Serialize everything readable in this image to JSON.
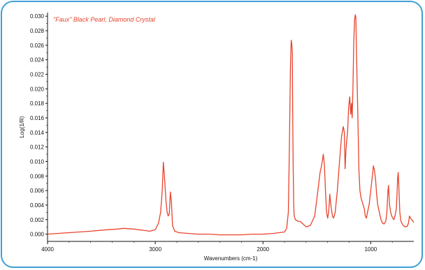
{
  "chart_data": {
    "type": "line",
    "title": "",
    "annotation": "\"Faux\" Black Pearl, Diamond Crystal",
    "xlabel": "Wavenumbers (cm-1)",
    "ylabel": "Log(1/R)",
    "xlim": [
      4000,
      600
    ],
    "ylim": [
      -0.001,
      0.0305
    ],
    "x_ticks": [
      "4000",
      "3000",
      "2000",
      "1000"
    ],
    "x_tick_values": [
      4000,
      3000,
      2000,
      1000
    ],
    "y_ticks": [
      "0.000",
      "0.002",
      "0.004",
      "0.006",
      "0.008",
      "0.010",
      "0.012",
      "0.014",
      "0.016",
      "0.018",
      "0.020",
      "0.022",
      "0.024",
      "0.026",
      "0.028",
      "0.030"
    ],
    "y_tick_values": [
      0,
      0.002,
      0.004,
      0.006,
      0.008,
      0.01,
      0.012,
      0.014,
      0.016,
      0.018,
      0.02,
      0.022,
      0.024,
      0.026,
      0.028,
      0.03
    ],
    "grid": false,
    "series": [
      {
        "color": "#e8432c",
        "x": [
          4000,
          3800,
          3600,
          3450,
          3350,
          3300,
          3200,
          3100,
          3050,
          3000,
          2970,
          2950,
          2935,
          2925,
          2915,
          2900,
          2890,
          2880,
          2870,
          2860,
          2850,
          2840,
          2820,
          2780,
          2700,
          2600,
          2500,
          2400,
          2300,
          2200,
          2100,
          2000,
          1900,
          1850,
          1800,
          1780,
          1765,
          1755,
          1745,
          1738,
          1733,
          1728,
          1725,
          1720,
          1715,
          1710,
          1700,
          1680,
          1650,
          1600,
          1560,
          1520,
          1490,
          1470,
          1455,
          1445,
          1440,
          1430,
          1420,
          1410,
          1400,
          1390,
          1380,
          1370,
          1355,
          1345,
          1330,
          1310,
          1290,
          1270,
          1255,
          1245,
          1238,
          1230,
          1222,
          1215,
          1205,
          1195,
          1185,
          1178,
          1172,
          1165,
          1158,
          1150,
          1143,
          1138,
          1132,
          1125,
          1118,
          1110,
          1100,
          1090,
          1080,
          1070,
          1060,
          1050,
          1040,
          1030,
          1015,
          1000,
          985,
          975,
          965,
          955,
          945,
          935,
          920,
          905,
          890,
          875,
          860,
          850,
          845,
          840,
          835,
          825,
          815,
          805,
          795,
          785,
          775,
          768,
          762,
          756,
          750,
          745,
          740,
          735,
          730,
          720,
          700,
          680,
          660,
          650,
          640,
          630,
          620,
          610,
          600
        ],
        "y": [
          0.0,
          0.0002,
          0.0004,
          0.0006,
          0.0007,
          0.0008,
          0.0007,
          0.0005,
          0.0004,
          0.0006,
          0.0015,
          0.003,
          0.006,
          0.0099,
          0.008,
          0.0045,
          0.003,
          0.0025,
          0.0028,
          0.0058,
          0.0045,
          0.0012,
          0.0004,
          0.0002,
          0.0001,
          0.0,
          0.0,
          -0.0001,
          -0.0001,
          -0.0001,
          0.0,
          0.0,
          0.0001,
          0.0002,
          0.0003,
          0.0008,
          0.003,
          0.012,
          0.023,
          0.0267,
          0.0262,
          0.025,
          0.018,
          0.0095,
          0.004,
          0.0025,
          0.002,
          0.0018,
          0.0017,
          0.001,
          0.0012,
          0.0025,
          0.006,
          0.0085,
          0.0095,
          0.0105,
          0.011,
          0.0095,
          0.006,
          0.003,
          0.0022,
          0.003,
          0.0055,
          0.004,
          0.0025,
          0.0022,
          0.003,
          0.006,
          0.01,
          0.0135,
          0.0148,
          0.014,
          0.009,
          0.0115,
          0.013,
          0.014,
          0.0175,
          0.0189,
          0.0165,
          0.018,
          0.016,
          0.02,
          0.026,
          0.0295,
          0.0302,
          0.0298,
          0.025,
          0.02,
          0.015,
          0.009,
          0.006,
          0.005,
          0.0045,
          0.004,
          0.0035,
          0.0025,
          0.0022,
          0.003,
          0.004,
          0.006,
          0.008,
          0.0094,
          0.0088,
          0.0075,
          0.0055,
          0.004,
          0.003,
          0.002,
          0.0015,
          0.0014,
          0.0018,
          0.003,
          0.0045,
          0.006,
          0.0067,
          0.004,
          0.003,
          0.0025,
          0.0022,
          0.002,
          0.0025,
          0.003,
          0.0035,
          0.0055,
          0.0078,
          0.0085,
          0.007,
          0.005,
          0.003,
          0.0018,
          0.0012,
          0.001,
          0.0011,
          0.0015,
          0.0025,
          0.0022,
          0.002,
          0.0018,
          0.0016
        ]
      }
    ]
  },
  "colors": {
    "frame": "#3f9fd6",
    "series": "#e8432c",
    "axis": "#111111"
  }
}
